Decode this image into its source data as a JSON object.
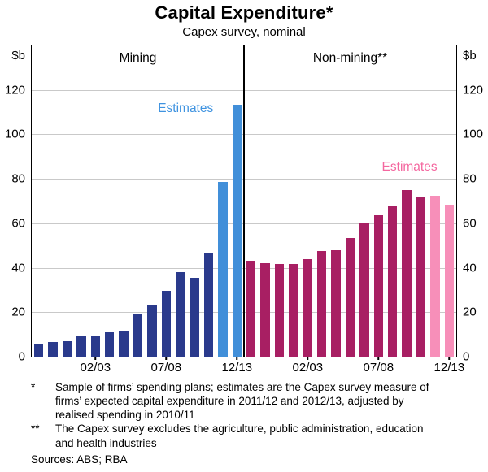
{
  "title": "Capital Expenditure*",
  "subtitle": "Capex survey, nominal",
  "y_axis": {
    "unit": "$b",
    "ticks": [
      0,
      20,
      40,
      60,
      80,
      100,
      120
    ],
    "max": 140
  },
  "chart_data": [
    {
      "type": "bar",
      "title": "Mining",
      "ylabel": "$b",
      "ylim": [
        0,
        140
      ],
      "y_ticks": [
        0,
        20,
        40,
        60,
        80,
        100,
        120
      ],
      "grid": true,
      "x_tick_labels": [
        "02/03",
        "07/08",
        "12/13"
      ],
      "x_tick_bar_positions": [
        5,
        10,
        15
      ],
      "values": [
        6,
        6.5,
        7,
        9,
        9.5,
        11,
        11.5,
        19.5,
        23.5,
        29.5,
        38,
        35.5,
        46.5,
        78.5,
        113.5
      ],
      "estimate_count": 2,
      "annotation": "Estimates",
      "colors": {
        "bars": "#2a3a8c",
        "estimates": "#418fd9",
        "annotation_text": "#3f93e0"
      }
    },
    {
      "type": "bar",
      "title": "Non-mining**",
      "ylabel": "$b",
      "ylim": [
        0,
        140
      ],
      "y_ticks": [
        0,
        20,
        40,
        60,
        80,
        100,
        120
      ],
      "grid": true,
      "x_tick_labels": [
        "02/03",
        "07/08",
        "12/13"
      ],
      "x_tick_bar_positions": [
        5,
        10,
        15
      ],
      "values": [
        43,
        42,
        41.5,
        41.5,
        44,
        47.5,
        48,
        53.5,
        60.5,
        63.5,
        67.5,
        75,
        72,
        72.5,
        68.5
      ],
      "estimate_count": 2,
      "annotation": "Estimates",
      "colors": {
        "bars": "#a81f63",
        "estimates": "#f78fb9",
        "annotation_text": "#f4679f"
      }
    }
  ],
  "footnotes": [
    {
      "marker": "*",
      "text": "Sample of firms’ spending plans; estimates are the Capex survey measure of firms’ expected capital expenditure in 2011/12 and 2012/13, adjusted by realised spending in 2010/11"
    },
    {
      "marker": "**",
      "text": "The Capex survey excludes the agriculture, public administration, education and health industries"
    }
  ],
  "sources": "Sources: ABS; RBA"
}
